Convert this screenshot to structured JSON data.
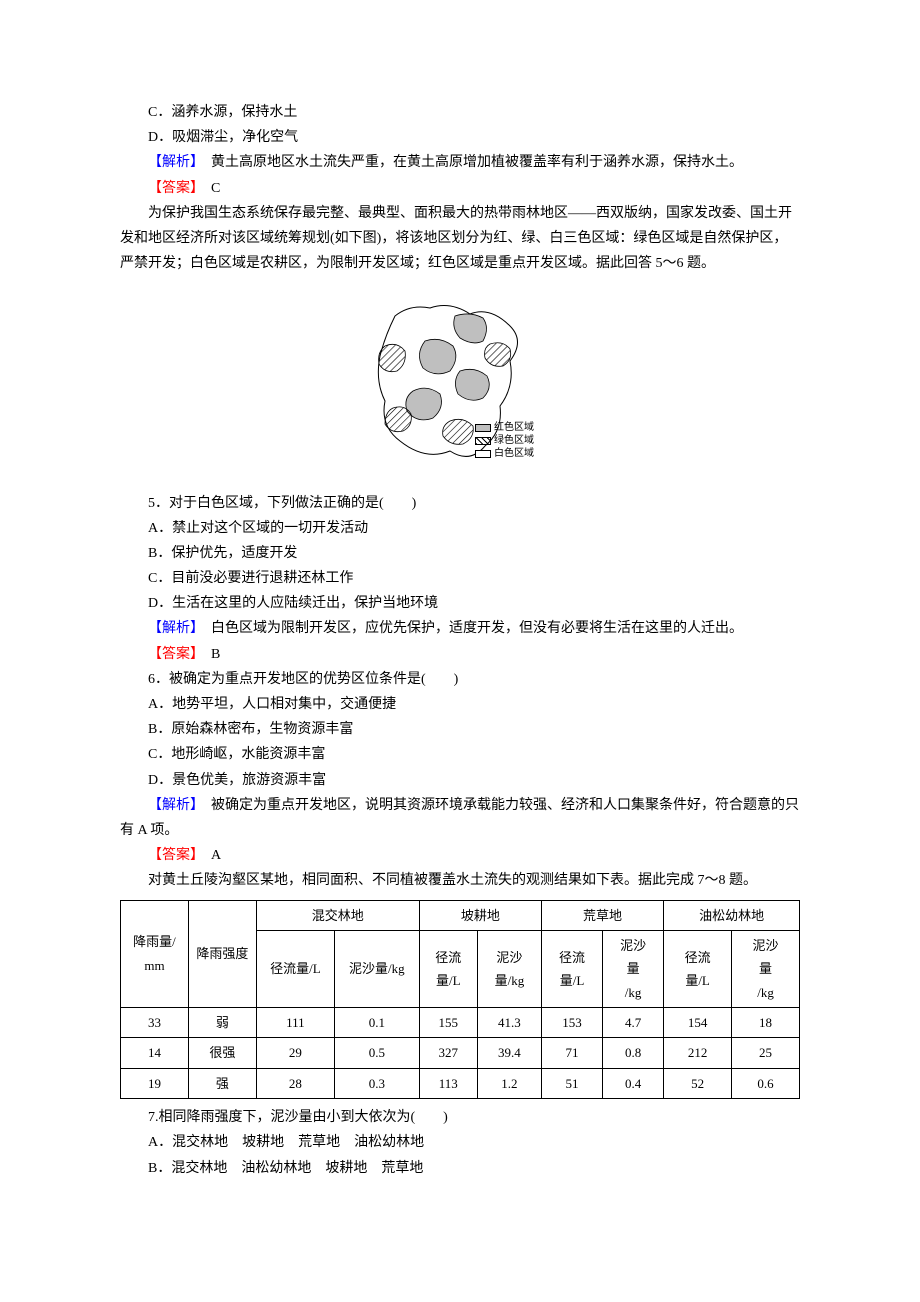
{
  "topLines": {
    "optC": "C．涵养水源，保持水土",
    "optD": "D．吸烟滞尘，净化空气",
    "analysisLabel": "【解析】",
    "analysisText": "　黄土高原地区水土流失严重，在黄土高原增加植被覆盖率有利于涵养水源，保持水土。",
    "answerLabel": "【答案】",
    "answerText": "　C"
  },
  "para1": "为保护我国生态系统保存最完整、最典型、面积最大的热带雨林地区——西双版纳，国家发改委、国土开发和地区经济所对该区域统筹规划(如下图)，将该地区划分为红、绿、白三色区域：绿色区域是自然保护区，严禁开发；白色区域是农耕区，为限制开发区域；红色区域是重点开发区域。据此回答 5～6 题。",
  "map": {
    "legend": {
      "red": "红色区域",
      "green": "绿色区域",
      "white": "白色区域"
    },
    "colors": {
      "redFill": "#bfbfbf",
      "hatch": "repeating-linear-gradient(45deg, #000 0 1px, transparent 1px 4px)",
      "white": "#ffffff",
      "stroke": "#000000"
    }
  },
  "q5": {
    "stem": "5．对于白色区域，下列做法正确的是(　　)",
    "optA": "A．禁止对这个区域的一切开发活动",
    "optB": "B．保护优先，适度开发",
    "optC": "C．目前没必要进行退耕还林工作",
    "optD": "D．生活在这里的人应陆续迁出，保护当地环境",
    "analysisLabel": "【解析】",
    "analysisText": "　白色区域为限制开发区，应优先保护，适度开发，但没有必要将生活在这里的人迁出。",
    "answerLabel": "【答案】",
    "answerText": "　B"
  },
  "q6": {
    "stem": "6．被确定为重点开发地区的优势区位条件是(　　)",
    "optA": "A．地势平坦，人口相对集中，交通便捷",
    "optB": "B．原始森林密布，生物资源丰富",
    "optC": "C．地形崎岖，水能资源丰富",
    "optD": "D．景色优美，旅游资源丰富",
    "analysisLabel": "【解析】",
    "analysisText": "　被确定为重点开发地区，说明其资源环境承载能力较强、经济和人口集聚条件好，符合题意的只有 A 项。",
    "answerLabel": "【答案】",
    "answerText": "　A"
  },
  "para2": "对黄土丘陵沟壑区某地，相同面积、不同植被覆盖水土流失的观测结果如下表。据此完成 7～8 题。",
  "table": {
    "headerTop": {
      "rain_mm": "降雨量/\nmm",
      "rain_intensity": "降雨强度",
      "mix": "混交林地",
      "slope": "坡耕地",
      "grass": "荒草地",
      "pine": "油松幼林地"
    },
    "headerSub": {
      "runoff": "径流量/L",
      "runoff_br": "径流\n量/L",
      "sed_kg": "泥沙量/kg",
      "sed_br": "泥沙\n量\n/kg",
      "sed_br2": "泥沙\n量/kg"
    },
    "rows": [
      [
        "33",
        "弱",
        "111",
        "0.1",
        "155",
        "41.3",
        "153",
        "4.7",
        "154",
        "18"
      ],
      [
        "14",
        "很强",
        "29",
        "0.5",
        "327",
        "39.4",
        "71",
        "0.8",
        "212",
        "25"
      ],
      [
        "19",
        "强",
        "28",
        "0.3",
        "113",
        "1.2",
        "51",
        "0.4",
        "52",
        "0.6"
      ]
    ]
  },
  "q7": {
    "stem": "7.相同降雨强度下，泥沙量由小到大依次为(　　)",
    "optA": "A．混交林地　坡耕地　荒草地　油松幼林地",
    "optB": "B．混交林地　油松幼林地　坡耕地　荒草地"
  }
}
